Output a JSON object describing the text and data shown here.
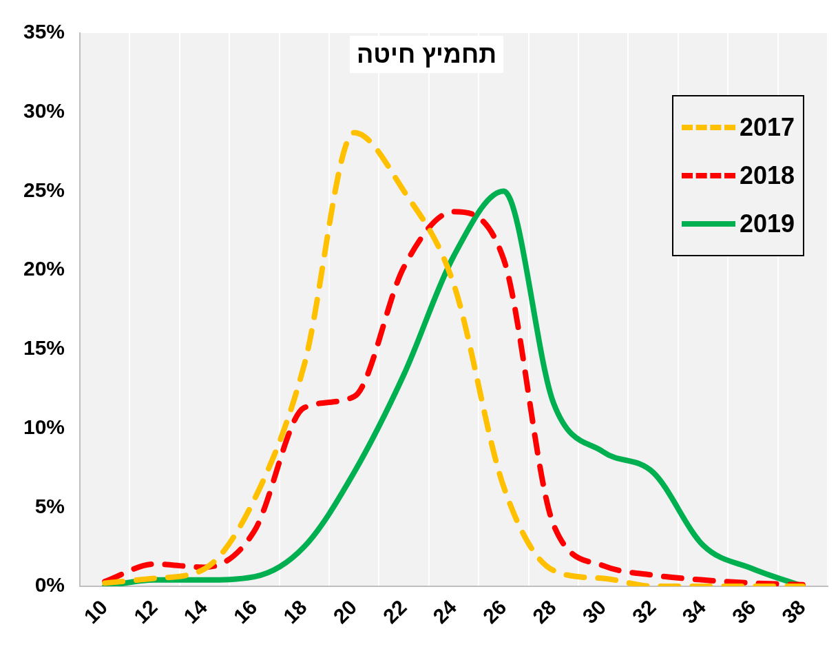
{
  "chart_data": {
    "type": "line",
    "title": "תחמיץ חיטה",
    "categories": [
      "10",
      "12",
      "14",
      "16",
      "18",
      "20",
      "22",
      "24",
      "26",
      "28",
      "30",
      "32",
      "34",
      "36",
      "38"
    ],
    "series": [
      {
        "name": "2017",
        "color": "#ffc000",
        "line_style": "dashed",
        "values": [
          0.2,
          0.5,
          1.1,
          5.5,
          14,
          28.7,
          25,
          19.1,
          6.3,
          1,
          0.5,
          0,
          0,
          0,
          0
        ]
      },
      {
        "name": "2018",
        "color": "#ff0000",
        "line_style": "dashed",
        "values": [
          0.3,
          1.4,
          1.2,
          3.5,
          11.3,
          12,
          20.2,
          23.7,
          20.7,
          3.9,
          1.3,
          0.7,
          0.4,
          0.2,
          0.1
        ]
      },
      {
        "name": "2019",
        "color": "#00b050",
        "line_style": "solid",
        "values": [
          0,
          0.4,
          0.4,
          0.6,
          2.5,
          7.2,
          13.4,
          20.9,
          25,
          11.6,
          8.5,
          7.2,
          2.6,
          1.1,
          0
        ]
      }
    ],
    "ylim": [
      0,
      35
    ],
    "yticks": [
      {
        "value": 0,
        "label": "0%"
      },
      {
        "value": 5,
        "label": "5%"
      },
      {
        "value": 10,
        "label": "10%"
      },
      {
        "value": 15,
        "label": "15%"
      },
      {
        "value": 20,
        "label": "20%"
      },
      {
        "value": 25,
        "label": "25%"
      },
      {
        "value": 30,
        "label": "30%"
      },
      {
        "value": 35,
        "label": "35%"
      }
    ],
    "grid": "x",
    "legend": "top right",
    "marker": "none"
  }
}
